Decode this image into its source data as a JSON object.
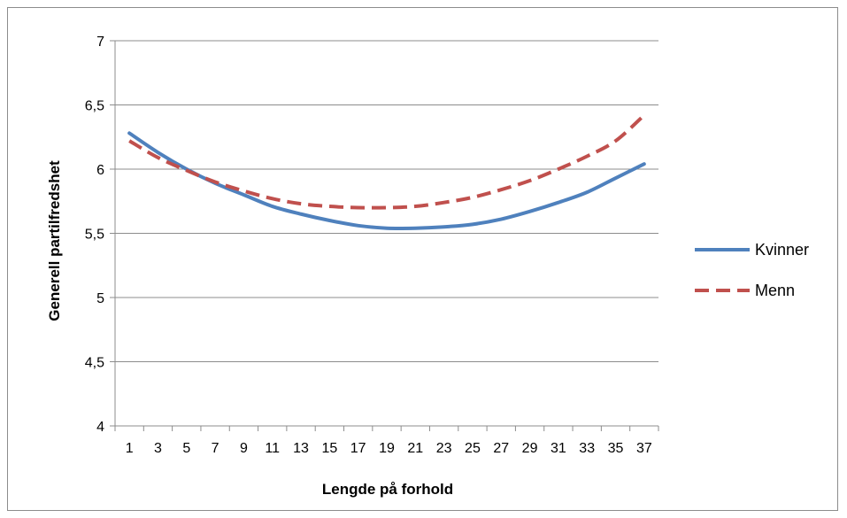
{
  "chart_data": {
    "type": "line",
    "xlabel": "Lengde på forhold",
    "ylabel": "Generell partilfredshet",
    "x": [
      1,
      3,
      5,
      7,
      9,
      11,
      13,
      15,
      17,
      19,
      21,
      23,
      25,
      27,
      29,
      31,
      33,
      35,
      37
    ],
    "ylim": [
      4,
      7
    ],
    "yticks": [
      4,
      4.5,
      5,
      5.5,
      6,
      6.5,
      7
    ],
    "ytick_labels": [
      "4",
      "4,5",
      "5",
      "5,5",
      "6",
      "6,5",
      "7"
    ],
    "grid": "horizontal",
    "legend_position": "right",
    "series": [
      {
        "name": "Kvinner",
        "color": "#4f81bd",
        "style": "solid",
        "values": [
          6.28,
          6.13,
          6.0,
          5.89,
          5.8,
          5.71,
          5.65,
          5.6,
          5.56,
          5.54,
          5.54,
          5.55,
          5.57,
          5.61,
          5.67,
          5.74,
          5.82,
          5.93,
          6.04
        ]
      },
      {
        "name": "Menn",
        "color": "#c0504d",
        "style": "dashed",
        "values": [
          6.22,
          6.09,
          5.99,
          5.9,
          5.83,
          5.77,
          5.73,
          5.71,
          5.7,
          5.7,
          5.71,
          5.74,
          5.78,
          5.84,
          5.91,
          6.0,
          6.1,
          6.22,
          6.42
        ]
      }
    ]
  }
}
